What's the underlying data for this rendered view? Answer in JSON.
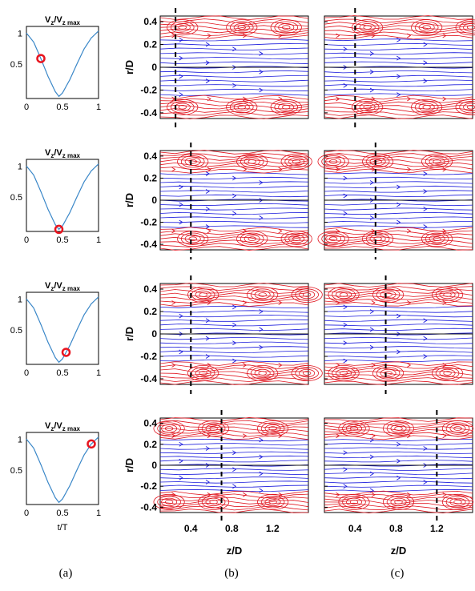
{
  "column_labels": [
    "(a)",
    "(b)",
    "(c)"
  ],
  "waveform": {
    "title_main": "V",
    "title_sub": "z",
    "title_mid": "/V",
    "title_sub2": "z max",
    "xlabel": "t/T",
    "x_ticks": [
      "0",
      "0.5",
      "1"
    ],
    "y_ticks": [
      "1",
      "0.5"
    ],
    "curve_color": "#3a87c8",
    "marker_color": "#e8141e",
    "marker_t": [
      0.2,
      0.45,
      0.55,
      0.9
    ]
  },
  "streamlines": {
    "ylabel": "r/D",
    "xlabel": "z/D",
    "y_ticks": [
      "0.4",
      "0.2",
      "0",
      "-0.2",
      "-0.4"
    ],
    "x_ticks": [
      "0.4",
      "0.8",
      "1.2"
    ],
    "core_color": "#1a1adc",
    "vortex_color": "#e0141e",
    "centerline_color": "#000000",
    "dashed_positions_b": [
      0.25,
      0.4,
      0.4,
      0.7
    ],
    "dashed_positions_c": [
      0.4,
      0.6,
      0.7,
      1.2
    ]
  },
  "chart_data": [
    {
      "type": "line",
      "title": "Vz/Vz max",
      "xlabel": "t/T",
      "xlim": [
        0,
        1
      ],
      "ylim": [
        0,
        1
      ],
      "x": [
        0,
        0.1,
        0.2,
        0.3,
        0.4,
        0.45,
        0.5,
        0.6,
        0.7,
        0.8,
        0.9,
        1.0
      ],
      "y": [
        0.95,
        0.82,
        0.58,
        0.32,
        0.1,
        0.03,
        0.08,
        0.27,
        0.5,
        0.72,
        0.88,
        0.98
      ],
      "markers": [
        {
          "t": 0.2
        },
        {
          "t": 0.45
        },
        {
          "t": 0.55
        },
        {
          "t": 0.9
        }
      ]
    }
  ]
}
